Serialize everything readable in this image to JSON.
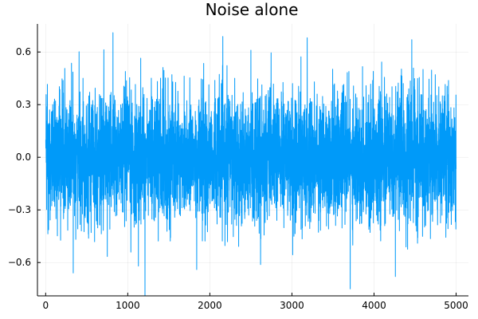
{
  "chart_data": {
    "type": "line",
    "title": "Noise alone",
    "xlabel": "",
    "ylabel": "",
    "xlim": [
      -100,
      5150
    ],
    "ylim": [
      -0.79,
      0.76
    ],
    "x_ticks": [
      0,
      1000,
      2000,
      3000,
      4000,
      5000
    ],
    "x_tick_labels": [
      "0",
      "1000",
      "2000",
      "3000",
      "4000",
      "5000"
    ],
    "y_ticks": [
      0.6,
      0.3,
      0.0,
      -0.3,
      -0.6
    ],
    "y_tick_labels": [
      "0.6",
      "0.3",
      "0.0",
      "−0.3",
      "−0.6"
    ],
    "grid": true,
    "legend": "none",
    "series": [
      {
        "color": "#009af9",
        "n_points": 5000,
        "x_start": 1,
        "x_end": 5000,
        "y_mean": 0.0,
        "y_std": 0.18,
        "y_max": 0.71,
        "y_max_at": 820,
        "y_min": -0.79,
        "y_min_at": 1210,
        "notable_points": [
          {
            "x": 820,
            "y": 0.71
          },
          {
            "x": 4460,
            "y": 0.67
          },
          {
            "x": 2500,
            "y": 0.61
          },
          {
            "x": 1210,
            "y": -0.79
          },
          {
            "x": 3710,
            "y": -0.75
          },
          {
            "x": 4260,
            "y": -0.68
          },
          {
            "x": 1130,
            "y": -0.62
          },
          {
            "x": 1840,
            "y": -0.64
          }
        ]
      }
    ]
  }
}
